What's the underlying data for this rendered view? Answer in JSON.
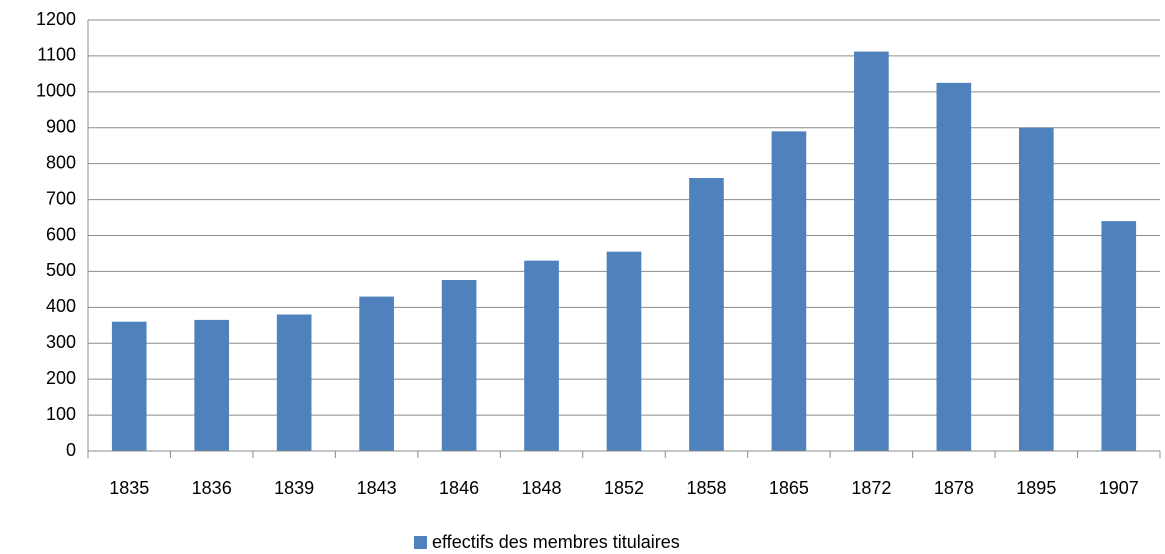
{
  "chart_data": {
    "type": "bar",
    "categories": [
      "1835",
      "1836",
      "1839",
      "1843",
      "1846",
      "1848",
      "1852",
      "1858",
      "1865",
      "1872",
      "1878",
      "1895",
      "1907"
    ],
    "series": [
      {
        "name": "effectifs des membres titulaires",
        "color": "#4f81bd",
        "values": [
          360,
          365,
          380,
          430,
          476,
          530,
          555,
          760,
          890,
          1112,
          1025,
          900,
          640
        ]
      }
    ],
    "ylim": [
      0,
      1200
    ],
    "yticks": [
      0,
      100,
      200,
      300,
      400,
      500,
      600,
      700,
      800,
      900,
      1000,
      1100,
      1200
    ],
    "grid": true,
    "legend": "bottom"
  }
}
